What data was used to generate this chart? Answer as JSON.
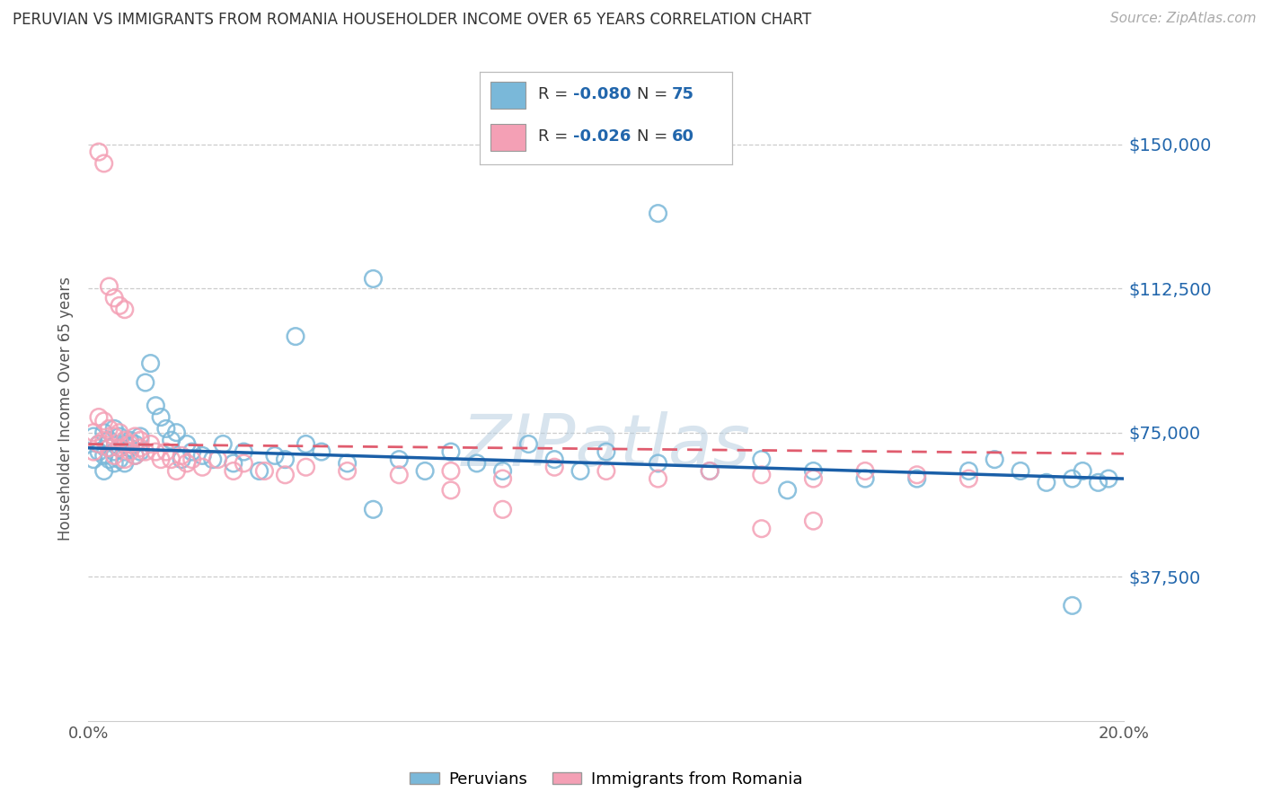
{
  "title": "PERUVIAN VS IMMIGRANTS FROM ROMANIA HOUSEHOLDER INCOME OVER 65 YEARS CORRELATION CHART",
  "source": "Source: ZipAtlas.com",
  "ylabel": "Householder Income Over 65 years",
  "xlim": [
    0.0,
    0.2
  ],
  "ylim": [
    0,
    162500
  ],
  "yticks": [
    37500,
    75000,
    112500,
    150000
  ],
  "ytick_labels": [
    "$37,500",
    "$75,000",
    "$112,500",
    "$150,000"
  ],
  "xticks": [
    0.0,
    0.05,
    0.1,
    0.15,
    0.2
  ],
  "xtick_labels": [
    "0.0%",
    "",
    "",
    "",
    "20.0%"
  ],
  "blue_R": -0.08,
  "blue_N": 75,
  "pink_R": -0.026,
  "pink_N": 60,
  "blue_color": "#7ab8d9",
  "pink_color": "#f4a0b5",
  "blue_line_color": "#1a5fa8",
  "pink_line_color": "#e05c6e",
  "watermark": "ZIPatlas",
  "legend_labels": [
    "Peruvians",
    "Immigrants from Romania"
  ],
  "background_color": "#ffffff",
  "grid_color": "#cccccc",
  "blue_scatter_x": [
    0.001,
    0.001,
    0.002,
    0.002,
    0.003,
    0.003,
    0.003,
    0.004,
    0.004,
    0.004,
    0.005,
    0.005,
    0.005,
    0.006,
    0.006,
    0.006,
    0.007,
    0.007,
    0.007,
    0.008,
    0.008,
    0.009,
    0.009,
    0.01,
    0.01,
    0.011,
    0.012,
    0.013,
    0.014,
    0.015,
    0.016,
    0.017,
    0.018,
    0.019,
    0.02,
    0.022,
    0.024,
    0.026,
    0.028,
    0.03,
    0.033,
    0.036,
    0.038,
    0.042,
    0.045,
    0.05,
    0.055,
    0.06,
    0.065,
    0.07,
    0.075,
    0.08,
    0.085,
    0.09,
    0.095,
    0.1,
    0.11,
    0.12,
    0.13,
    0.14,
    0.15,
    0.16,
    0.17,
    0.175,
    0.18,
    0.185,
    0.19,
    0.192,
    0.195,
    0.197,
    0.04,
    0.055,
    0.11,
    0.135,
    0.19
  ],
  "blue_scatter_y": [
    68000,
    74000,
    72000,
    70000,
    75000,
    69000,
    65000,
    73000,
    71000,
    68000,
    76000,
    70000,
    67000,
    74000,
    71000,
    68000,
    72000,
    70000,
    67000,
    73000,
    71000,
    72000,
    69000,
    74000,
    70000,
    88000,
    93000,
    82000,
    79000,
    76000,
    73000,
    75000,
    68000,
    72000,
    70000,
    69000,
    68000,
    72000,
    67000,
    70000,
    65000,
    69000,
    68000,
    72000,
    70000,
    67000,
    55000,
    68000,
    65000,
    70000,
    67000,
    65000,
    72000,
    68000,
    65000,
    70000,
    67000,
    65000,
    68000,
    65000,
    63000,
    63000,
    65000,
    68000,
    65000,
    62000,
    63000,
    65000,
    62000,
    63000,
    100000,
    115000,
    132000,
    60000,
    30000
  ],
  "pink_scatter_x": [
    0.001,
    0.001,
    0.002,
    0.002,
    0.003,
    0.003,
    0.004,
    0.004,
    0.005,
    0.005,
    0.006,
    0.006,
    0.007,
    0.007,
    0.008,
    0.008,
    0.009,
    0.009,
    0.01,
    0.01,
    0.011,
    0.012,
    0.013,
    0.014,
    0.015,
    0.016,
    0.017,
    0.018,
    0.019,
    0.02,
    0.022,
    0.025,
    0.028,
    0.03,
    0.034,
    0.038,
    0.042,
    0.05,
    0.06,
    0.07,
    0.08,
    0.09,
    0.1,
    0.11,
    0.12,
    0.13,
    0.14,
    0.15,
    0.16,
    0.17,
    0.002,
    0.003,
    0.004,
    0.005,
    0.006,
    0.007,
    0.07,
    0.08,
    0.13,
    0.14
  ],
  "pink_scatter_y": [
    75000,
    70000,
    79000,
    72000,
    78000,
    73000,
    76000,
    71000,
    74000,
    69000,
    75000,
    71000,
    73000,
    68000,
    72000,
    70000,
    74000,
    69000,
    73000,
    71000,
    70000,
    72000,
    70000,
    68000,
    70000,
    68000,
    65000,
    69000,
    67000,
    68000,
    66000,
    68000,
    65000,
    67000,
    65000,
    64000,
    66000,
    65000,
    64000,
    65000,
    63000,
    66000,
    65000,
    63000,
    65000,
    64000,
    63000,
    65000,
    64000,
    63000,
    148000,
    145000,
    113000,
    110000,
    108000,
    107000,
    60000,
    55000,
    50000,
    52000
  ]
}
